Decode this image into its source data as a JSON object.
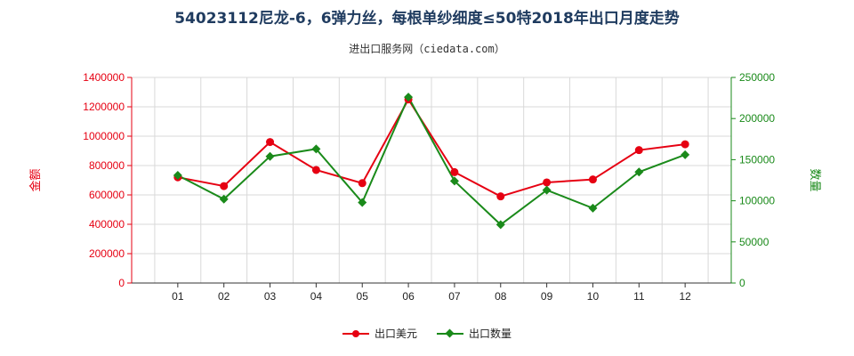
{
  "title": "54023112尼龙-6，6弹力丝，每根单纱细度≤50特2018年出口月度走势",
  "subtitle": "进出口服务网（ciedata.com）",
  "colors": {
    "value": "#e60012",
    "qty": "#1a8a1a",
    "grid": "#d9d9d9"
  },
  "chart_data": {
    "type": "line",
    "categories": [
      "01",
      "02",
      "03",
      "04",
      "05",
      "06",
      "07",
      "08",
      "09",
      "10",
      "11",
      "12"
    ],
    "ylabel_left": "金额",
    "ylabel_right": "数量",
    "ylim_left": [
      0,
      1400000
    ],
    "ylim_right": [
      0,
      250000
    ],
    "yticks_left": [
      "0",
      "200000",
      "400000",
      "600000",
      "800000",
      "1000000",
      "1200000",
      "1400000"
    ],
    "yticks_right": [
      "0",
      "50000",
      "100000",
      "150000",
      "200000",
      "250000"
    ],
    "grid": true,
    "legend": "bottom",
    "series": [
      {
        "name": "出口美元",
        "axis": "left",
        "values": [
          720000,
          660000,
          960000,
          770000,
          680000,
          1250000,
          755000,
          590000,
          685000,
          705000,
          905000,
          945000
        ]
      },
      {
        "name": "出口数量",
        "axis": "right",
        "values": [
          131000,
          102000,
          154000,
          163000,
          98000,
          226000,
          124000,
          71000,
          113000,
          91000,
          135000,
          156000
        ]
      }
    ]
  }
}
